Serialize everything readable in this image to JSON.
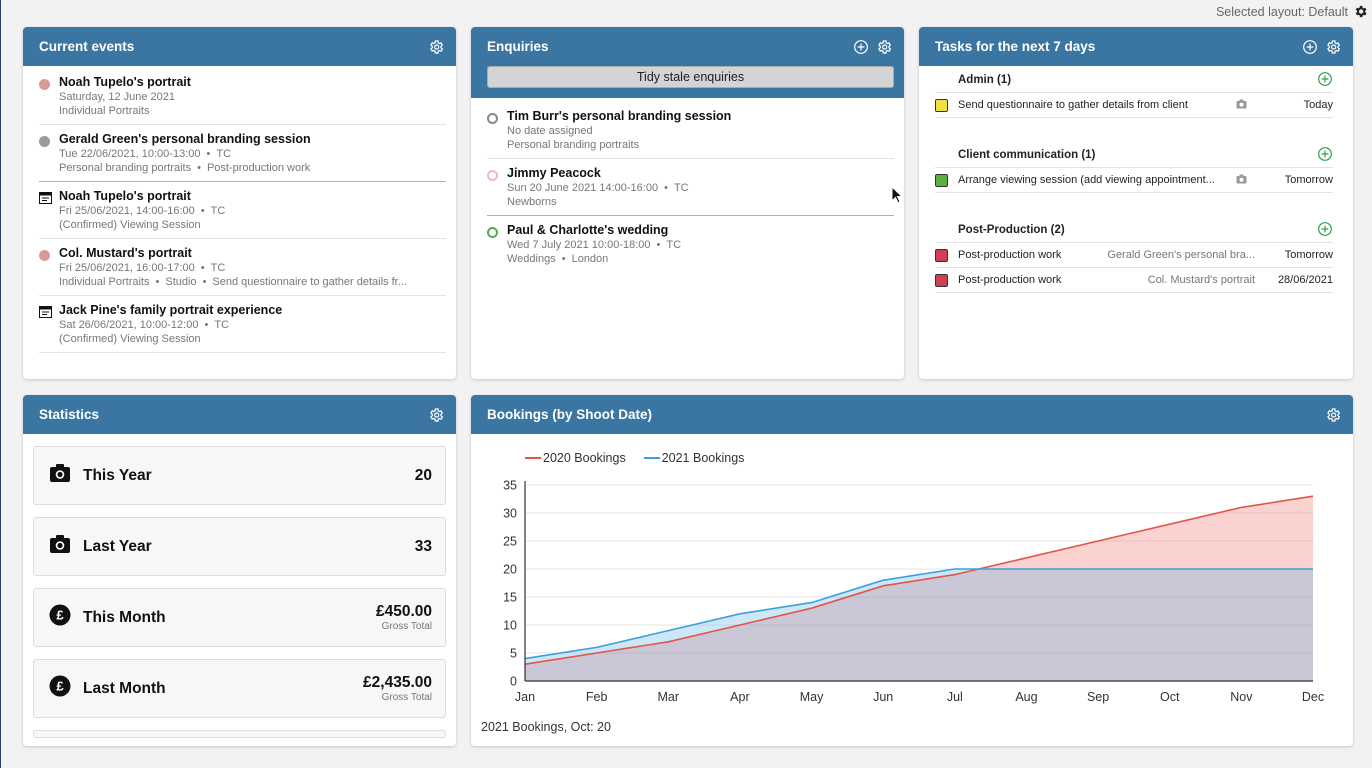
{
  "layout_label": "Selected layout: Default",
  "colors": {
    "header": "#3b76a2",
    "series2020": "#e0574a",
    "series2021": "#3ba0dc"
  },
  "current_events": {
    "title": "Current events",
    "items": [
      {
        "icon": "dot",
        "color": "#d99a94",
        "title": "Noah Tupelo's portrait",
        "line1": "Saturday, 12 June 2021",
        "line2": "Individual Portraits",
        "divider": "light"
      },
      {
        "icon": "dot",
        "color": "#9a9a9a",
        "title": "Gerald Green's personal branding session",
        "line1": "Tue 22/06/2021, 10:00-13:00",
        "line1b": "TC",
        "line2": "Personal branding portraits",
        "line2b": "Post-production work",
        "divider": "blue"
      },
      {
        "icon": "calendar",
        "title": "Noah Tupelo's portrait",
        "line1": "Fri 25/06/2021, 14:00-16:00",
        "line1b": "TC",
        "line2": "(Confirmed) Viewing Session",
        "divider": "light"
      },
      {
        "icon": "dot",
        "color": "#d99a94",
        "title": "Col. Mustard's portrait",
        "line1": "Fri 25/06/2021, 16:00-17:00",
        "line1b": "TC",
        "line2": "Individual Portraits",
        "line2b": "Studio",
        "line2c": "Send questionnaire to gather details fr...",
        "divider": "light"
      },
      {
        "icon": "calendar",
        "title": "Jack Pine's family portrait experience",
        "line1": "Sat 26/06/2021, 10:00-12:00",
        "line1b": "TC",
        "line2": "(Confirmed) Viewing Session",
        "divider": "light"
      }
    ]
  },
  "enquiries": {
    "title": "Enquiries",
    "tidy_label": "Tidy stale enquiries",
    "items": [
      {
        "ring": "#888888",
        "title": "Tim Burr's personal branding session",
        "line1": "No date assigned",
        "line2": "Personal branding portraits",
        "divider": "light"
      },
      {
        "ring": "#f0b8b8",
        "title": "Jimmy Peacock",
        "line1": "Sun 20 June 2021 14:00-16:00",
        "line1b": "TC",
        "line2": "Newborns",
        "divider": "blue"
      },
      {
        "ring": "#4caf50",
        "title": "Paul & Charlotte's wedding",
        "line1": "Wed 7 July 2021 10:00-18:00",
        "line1b": "TC",
        "line2": "Weddings",
        "line2b": "London",
        "divider": "none"
      }
    ]
  },
  "tasks": {
    "title": "Tasks for the next 7 days",
    "groups": [
      {
        "name": "Admin (1)",
        "rows": [
          {
            "color": "#f0e040",
            "task": "Send questionnaire to gather details from client",
            "ref": "",
            "camera": true,
            "due": "Today"
          }
        ]
      },
      {
        "name": "Client communication (1)",
        "rows": [
          {
            "color": "#5cb040",
            "task": "Arrange viewing session (add viewing appointment...",
            "ref": "",
            "camera": true,
            "due": "Tomorrow"
          }
        ]
      },
      {
        "name": "Post-Production (2)",
        "rows": [
          {
            "color": "#d04050",
            "task": "Post-production work",
            "ref": "Gerald Green's personal bra...",
            "camera": false,
            "due": "Tomorrow"
          },
          {
            "color": "#d04050",
            "task": "Post-production work",
            "ref": "Col. Mustard's portrait",
            "camera": false,
            "due": "28/06/2021"
          }
        ]
      }
    ]
  },
  "statistics": {
    "title": "Statistics",
    "cards": [
      {
        "icon": "camera-icon",
        "label": "This Year",
        "value": "20",
        "note": ""
      },
      {
        "icon": "camera-icon",
        "label": "Last Year",
        "value": "33",
        "note": ""
      },
      {
        "icon": "pound-icon",
        "label": "This Month",
        "value": "£450.00",
        "note": "Gross Total"
      },
      {
        "icon": "pound-icon",
        "label": "Last Month",
        "value": "£2,435.00",
        "note": "Gross Total"
      }
    ]
  },
  "bookings": {
    "title": "Bookings (by Shoot Date)",
    "footer": "2021 Bookings, Oct: 20"
  },
  "chart_data": {
    "type": "area",
    "title": "",
    "categories": [
      "Jan",
      "Feb",
      "Mar",
      "Apr",
      "May",
      "Jun",
      "Jul",
      "Aug",
      "Sep",
      "Oct",
      "Nov",
      "Dec"
    ],
    "series": [
      {
        "name": "2020 Bookings",
        "color": "#e0574a",
        "values": [
          3,
          5,
          7,
          10,
          13,
          17,
          19,
          22,
          25,
          28,
          31,
          33
        ]
      },
      {
        "name": "2021 Bookings",
        "color": "#3ba0dc",
        "values": [
          4,
          6,
          9,
          12,
          14,
          18,
          20,
          20,
          20,
          20,
          20,
          20
        ]
      }
    ],
    "yticks": [
      0,
      5,
      10,
      15,
      20,
      25,
      30,
      35
    ],
    "ylim": [
      0,
      35
    ],
    "xlabel": "",
    "ylabel": "",
    "grid": true,
    "legend": "top-left"
  }
}
